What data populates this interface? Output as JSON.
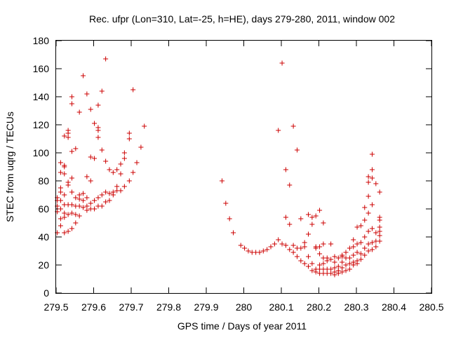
{
  "chart_data": {
    "type": "scatter",
    "title": "Rec. ufpr (Lon=310, Lat=-25, h=HE), days 279-280, 2011, window 002",
    "xlabel": "GPS time / Days of year 2011",
    "ylabel": "STEC from uqrg / TECUs",
    "xlim": [
      279.5,
      280.5
    ],
    "ylim": [
      0,
      180
    ],
    "xticks": [
      "279.5",
      "279.6",
      "279.7",
      "279.8",
      "279.9",
      "280",
      "280.1",
      "280.2",
      "280.3",
      "280.4",
      "280.5"
    ],
    "yticks": [
      "0",
      "20",
      "40",
      "60",
      "80",
      "100",
      "120",
      "140",
      "160",
      "180"
    ],
    "marker": "+",
    "marker_color": "#cc0000",
    "grid": false,
    "series": [
      {
        "name": "STEC",
        "points": [
          [
            279.503,
            43
          ],
          [
            279.503,
            58
          ],
          [
            279.503,
            62
          ],
          [
            279.503,
            66
          ],
          [
            279.503,
            68
          ],
          [
            279.512,
            48
          ],
          [
            279.512,
            53
          ],
          [
            279.512,
            60
          ],
          [
            279.512,
            66
          ],
          [
            279.512,
            72
          ],
          [
            279.512,
            75
          ],
          [
            279.512,
            86
          ],
          [
            279.512,
            93
          ],
          [
            279.522,
            43
          ],
          [
            279.522,
            54
          ],
          [
            279.522,
            57
          ],
          [
            279.522,
            63
          ],
          [
            279.522,
            70
          ],
          [
            279.522,
            85
          ],
          [
            279.522,
            90
          ],
          [
            279.522,
            91
          ],
          [
            279.522,
            112
          ],
          [
            279.532,
            44
          ],
          [
            279.532,
            56
          ],
          [
            279.532,
            63
          ],
          [
            279.532,
            77
          ],
          [
            279.532,
            79
          ],
          [
            279.532,
            111
          ],
          [
            279.532,
            114
          ],
          [
            279.532,
            116
          ],
          [
            279.542,
            46
          ],
          [
            279.542,
            57
          ],
          [
            279.542,
            63
          ],
          [
            279.542,
            72
          ],
          [
            279.542,
            82
          ],
          [
            279.542,
            101
          ],
          [
            279.542,
            135
          ],
          [
            279.542,
            140
          ],
          [
            279.552,
            50
          ],
          [
            279.552,
            56
          ],
          [
            279.552,
            62
          ],
          [
            279.552,
            68
          ],
          [
            279.552,
            103
          ],
          [
            279.562,
            55
          ],
          [
            279.562,
            62
          ],
          [
            279.562,
            67
          ],
          [
            279.562,
            70
          ],
          [
            279.562,
            129
          ],
          [
            279.572,
            61
          ],
          [
            279.572,
            66
          ],
          [
            279.572,
            71
          ],
          [
            279.572,
            155
          ],
          [
            279.582,
            59
          ],
          [
            279.582,
            62
          ],
          [
            279.582,
            68
          ],
          [
            279.582,
            83
          ],
          [
            279.582,
            142
          ],
          [
            279.592,
            60
          ],
          [
            279.592,
            64
          ],
          [
            279.592,
            80
          ],
          [
            279.592,
            97
          ],
          [
            279.592,
            131
          ],
          [
            279.602,
            60
          ],
          [
            279.602,
            66
          ],
          [
            279.602,
            96
          ],
          [
            279.602,
            121
          ],
          [
            279.612,
            62
          ],
          [
            279.612,
            68
          ],
          [
            279.612,
            111
          ],
          [
            279.612,
            116
          ],
          [
            279.612,
            118
          ],
          [
            279.612,
            134
          ],
          [
            279.622,
            62
          ],
          [
            279.622,
            70
          ],
          [
            279.622,
            102
          ],
          [
            279.622,
            144
          ],
          [
            279.632,
            65
          ],
          [
            279.632,
            72
          ],
          [
            279.632,
            94
          ],
          [
            279.632,
            167
          ],
          [
            279.642,
            66
          ],
          [
            279.642,
            71
          ],
          [
            279.642,
            88
          ],
          [
            279.652,
            70
          ],
          [
            279.652,
            72
          ],
          [
            279.652,
            86
          ],
          [
            279.662,
            73
          ],
          [
            279.662,
            76
          ],
          [
            279.662,
            88
          ],
          [
            279.672,
            73
          ],
          [
            279.672,
            85
          ],
          [
            279.672,
            92
          ],
          [
            279.682,
            76
          ],
          [
            279.682,
            96
          ],
          [
            279.682,
            100
          ],
          [
            279.695,
            80
          ],
          [
            279.695,
            110
          ],
          [
            279.695,
            114
          ],
          [
            279.705,
            86
          ],
          [
            279.705,
            145
          ],
          [
            279.715,
            93
          ],
          [
            279.726,
            104
          ],
          [
            279.735,
            119
          ],
          [
            279.942,
            80
          ],
          [
            279.952,
            64
          ],
          [
            279.962,
            53
          ],
          [
            279.972,
            43
          ],
          [
            279.992,
            34
          ],
          [
            280.002,
            32
          ],
          [
            280.012,
            30
          ],
          [
            280.022,
            29
          ],
          [
            280.032,
            29
          ],
          [
            280.042,
            29
          ],
          [
            280.052,
            30
          ],
          [
            280.062,
            31
          ],
          [
            280.072,
            33
          ],
          [
            280.082,
            35
          ],
          [
            280.092,
            38
          ],
          [
            280.092,
            116
          ],
          [
            280.102,
            35
          ],
          [
            280.102,
            164
          ],
          [
            280.112,
            34
          ],
          [
            280.112,
            54
          ],
          [
            280.112,
            88
          ],
          [
            280.122,
            31
          ],
          [
            280.122,
            49
          ],
          [
            280.122,
            77
          ],
          [
            280.132,
            29
          ],
          [
            280.132,
            34
          ],
          [
            280.132,
            119
          ],
          [
            280.142,
            26
          ],
          [
            280.142,
            32
          ],
          [
            280.142,
            102
          ],
          [
            280.152,
            23
          ],
          [
            280.152,
            32
          ],
          [
            280.152,
            53
          ],
          [
            280.162,
            21
          ],
          [
            280.162,
            33
          ],
          [
            280.162,
            36
          ],
          [
            280.172,
            19
          ],
          [
            280.172,
            26
          ],
          [
            280.172,
            42
          ],
          [
            280.172,
            56
          ],
          [
            280.182,
            16
          ],
          [
            280.182,
            21
          ],
          [
            280.182,
            49
          ],
          [
            280.182,
            54
          ],
          [
            280.192,
            15
          ],
          [
            280.192,
            17
          ],
          [
            280.192,
            32
          ],
          [
            280.192,
            33
          ],
          [
            280.192,
            55
          ],
          [
            280.202,
            14
          ],
          [
            280.202,
            17
          ],
          [
            280.202,
            20
          ],
          [
            280.202,
            28
          ],
          [
            280.202,
            33
          ],
          [
            280.202,
            59
          ],
          [
            280.212,
            14
          ],
          [
            280.212,
            17
          ],
          [
            280.212,
            21
          ],
          [
            280.212,
            25
          ],
          [
            280.212,
            35
          ],
          [
            280.212,
            50
          ],
          [
            280.222,
            14
          ],
          [
            280.222,
            17
          ],
          [
            280.222,
            23
          ],
          [
            280.222,
            25
          ],
          [
            280.232,
            14
          ],
          [
            280.232,
            17
          ],
          [
            280.232,
            24
          ],
          [
            280.232,
            35
          ],
          [
            280.242,
            13
          ],
          [
            280.242,
            15
          ],
          [
            280.242,
            18
          ],
          [
            280.242,
            22
          ],
          [
            280.242,
            26
          ],
          [
            280.252,
            14
          ],
          [
            280.252,
            16
          ],
          [
            280.252,
            19
          ],
          [
            280.252,
            25
          ],
          [
            280.262,
            15
          ],
          [
            280.262,
            18
          ],
          [
            280.262,
            22
          ],
          [
            280.262,
            26
          ],
          [
            280.262,
            27
          ],
          [
            280.272,
            16
          ],
          [
            280.272,
            20
          ],
          [
            280.272,
            25
          ],
          [
            280.272,
            29
          ],
          [
            280.282,
            17
          ],
          [
            280.282,
            21
          ],
          [
            280.282,
            25
          ],
          [
            280.282,
            32
          ],
          [
            280.292,
            20
          ],
          [
            280.292,
            22
          ],
          [
            280.292,
            27
          ],
          [
            280.292,
            33
          ],
          [
            280.292,
            38
          ],
          [
            280.302,
            21
          ],
          [
            280.302,
            23
          ],
          [
            280.302,
            29
          ],
          [
            280.302,
            35
          ],
          [
            280.302,
            47
          ],
          [
            280.312,
            24
          ],
          [
            280.312,
            28
          ],
          [
            280.312,
            36
          ],
          [
            280.312,
            48
          ],
          [
            280.322,
            27
          ],
          [
            280.322,
            32
          ],
          [
            280.322,
            40
          ],
          [
            280.322,
            52
          ],
          [
            280.322,
            61
          ],
          [
            280.332,
            30
          ],
          [
            280.332,
            35
          ],
          [
            280.332,
            44
          ],
          [
            280.332,
            57
          ],
          [
            280.332,
            69
          ],
          [
            280.332,
            79
          ],
          [
            280.332,
            83
          ],
          [
            280.342,
            31
          ],
          [
            280.342,
            36
          ],
          [
            280.342,
            46
          ],
          [
            280.342,
            63
          ],
          [
            280.342,
            82
          ],
          [
            280.342,
            88
          ],
          [
            280.342,
            99
          ],
          [
            280.352,
            33
          ],
          [
            280.352,
            37
          ],
          [
            280.352,
            43
          ],
          [
            280.352,
            78
          ],
          [
            280.362,
            37
          ],
          [
            280.362,
            41
          ],
          [
            280.362,
            44
          ],
          [
            280.362,
            47
          ],
          [
            280.362,
            52
          ],
          [
            280.362,
            54
          ],
          [
            280.362,
            72
          ]
        ]
      }
    ]
  }
}
